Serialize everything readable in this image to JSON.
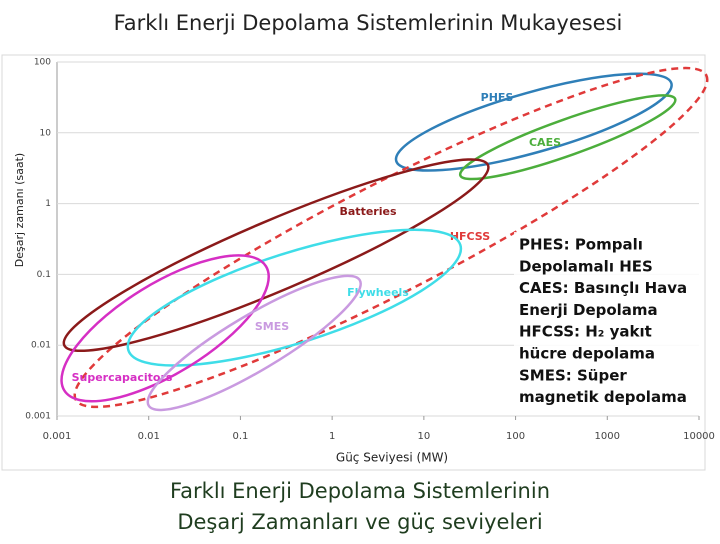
{
  "title": "Farklı Enerji Depolama Sistemlerinin Mukayesesi",
  "chart_data": {
    "type": "region",
    "xlabel": "Güç Seviyesi (MW)",
    "ylabel": "Deşarj zamanı (saat)",
    "log_x": true,
    "log_y": true,
    "xlim": [
      0.001,
      10000
    ],
    "xticks": [
      0.001,
      0.01,
      0.1,
      1,
      10,
      100,
      1000,
      10000
    ],
    "ylim": [
      0.001,
      100
    ],
    "yticks": [
      0.001,
      0.01,
      0.1,
      1,
      10,
      100
    ],
    "series": [
      {
        "name": "PHES",
        "color": "#2f7fb8",
        "from": [
          5,
          4
        ],
        "to": [
          5000,
          50
        ]
      },
      {
        "name": "CAES",
        "color": "#4cae3c",
        "from": [
          25,
          2.5
        ],
        "to": [
          5500,
          30
        ]
      },
      {
        "name": "HFCSS",
        "color": "#e03a3a",
        "dashed": true,
        "from": [
          0.0016,
          0.0017
        ],
        "to": [
          12000,
          65
        ]
      },
      {
        "name": "Batteries",
        "color": "#8b1a1a",
        "from": [
          0.0012,
          0.01
        ],
        "to": [
          50,
          3.5
        ]
      },
      {
        "name": "Flywheels",
        "color": "#3fdde8",
        "from": [
          0.006,
          0.0085
        ],
        "to": [
          25,
          0.26
        ]
      },
      {
        "name": "Supercapacitors",
        "color": "#d62fc4",
        "from": [
          0.0012,
          0.0023
        ],
        "to": [
          0.19,
          0.13
        ]
      },
      {
        "name": "SMES",
        "color": "#c99ae0",
        "from": [
          0.01,
          0.0014
        ],
        "to": [
          2,
          0.083
        ]
      }
    ],
    "note": [
      "PHES: Pompalı",
      "Depolamalı HES",
      "CAES: Basınçlı Hava",
      "Enerji Depolama",
      "HFCSS: H₂ yakıt",
      "hücre depolama",
      "SMES: Süper",
      "magnetik depolama"
    ]
  },
  "caption": [
    "Farklı Enerji Depolama Sistemlerinin",
    "Deşarj Zamanları ve güç seviyeleri"
  ]
}
